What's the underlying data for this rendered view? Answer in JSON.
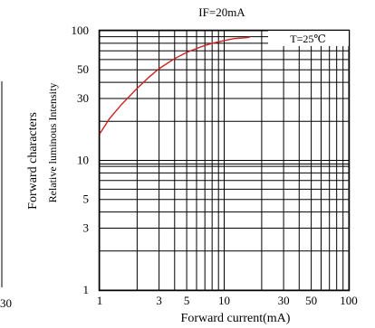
{
  "chart_data": {
    "type": "line",
    "title": "IF=20mA",
    "annotation": "T=25℃",
    "xlabel": "Forward current(mA)",
    "ylabel_line1": "Forward characters",
    "ylabel_line2": "Relative luminous Intensity",
    "left_partial_tick": "30",
    "x_scale": "log",
    "y_scale": "log",
    "xlim": [
      1,
      100
    ],
    "ylim": [
      1,
      100
    ],
    "grid": true,
    "x_ticks": [
      1,
      3,
      5,
      10,
      30,
      50,
      100
    ],
    "x_tick_labels": [
      "1",
      "3",
      "5",
      "10",
      "30",
      "50",
      "100"
    ],
    "y_ticks": [
      1,
      3,
      5,
      10,
      30,
      50,
      100
    ],
    "y_tick_labels": [
      "1",
      "3",
      "5",
      "10",
      "30",
      "50",
      "100"
    ],
    "curve_color": "#cc2222",
    "series": [
      {
        "x": [
          1,
          1.2,
          1.5,
          2,
          2.5,
          3,
          4,
          5,
          6,
          7,
          8,
          10,
          12,
          14,
          16
        ],
        "y": [
          16,
          21,
          27,
          36,
          44,
          51,
          61,
          68,
          73,
          77,
          80,
          84,
          87,
          88,
          89
        ]
      }
    ]
  }
}
